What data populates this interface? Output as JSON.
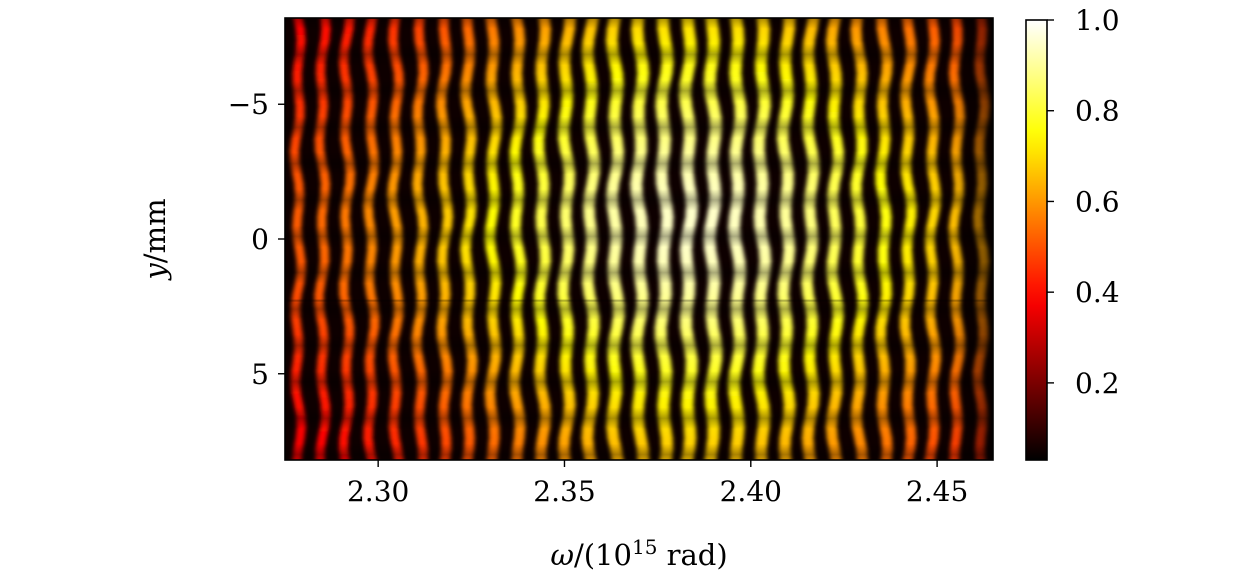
{
  "chart_data": {
    "type": "heatmap",
    "title": "",
    "xlabel_parts": {
      "lead": "ω/(10",
      "sup": "15",
      "tail": " rad)"
    },
    "ylabel_parts": {
      "italic": "y",
      "tail": "/mm"
    },
    "xlim": [
      2.275,
      2.465
    ],
    "ylim": [
      -8.2,
      8.2
    ],
    "y_inverted": true,
    "x_ticks": [
      2.3,
      2.35,
      2.4,
      2.45
    ],
    "x_tick_labels": [
      "2.30",
      "2.35",
      "2.40",
      "2.45"
    ],
    "y_ticks": [
      -5,
      0,
      5
    ],
    "y_tick_labels": [
      "−5",
      "0",
      "5"
    ],
    "colorbar": {
      "colormap": "hot",
      "range": [
        0.03,
        1.0
      ],
      "ticks": [
        0.2,
        0.4,
        0.6,
        0.8,
        1.0
      ],
      "tick_labels": [
        "0.2",
        "0.4",
        "0.6",
        "0.8",
        "1.0"
      ]
    },
    "fringe_count": 29,
    "fringe_start_x": 2.2785,
    "fringe_spacing_x": 0.00655,
    "intensity_profile_x": {
      "center": 2.385,
      "width": 0.075,
      "peak": 0.95,
      "floor": 0.45
    },
    "intensity_profile_y": {
      "center": -0.5,
      "width": 7.0,
      "edge": 0.62
    },
    "spot_period_y": 1.35
  }
}
